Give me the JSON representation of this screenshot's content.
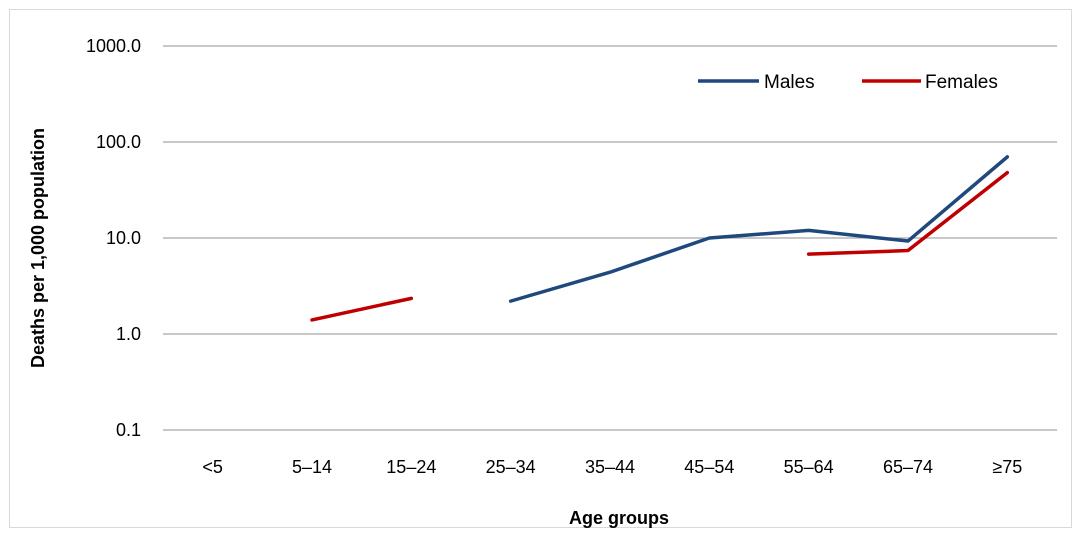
{
  "chart_data": {
    "type": "line",
    "title": "",
    "xlabel": "Age groups",
    "ylabel": "Deaths per 1,000 population",
    "yscale": "log",
    "ylim": [
      0.1,
      1000
    ],
    "yticks": [
      "0.1",
      "1.0",
      "10.0",
      "100.0",
      "1000.0"
    ],
    "grid": "horizontal",
    "legend_position": "top-right",
    "categories": [
      "<5",
      "5–14",
      "15–24",
      "25–34",
      "35–44",
      "45–54",
      "55–64",
      "65–74",
      "≥75"
    ],
    "series": [
      {
        "name": "Males",
        "color": "#1f497d",
        "values": [
          null,
          null,
          null,
          2.2,
          4.4,
          10.0,
          12.0,
          9.3,
          70.0
        ]
      },
      {
        "name": "Females",
        "color": "#c00000",
        "values": [
          null,
          1.4,
          2.35,
          null,
          null,
          null,
          6.8,
          7.4,
          48.0
        ]
      }
    ]
  },
  "colors": {
    "gridline": "#a6a6a6",
    "frame": "#d9d9d9"
  }
}
